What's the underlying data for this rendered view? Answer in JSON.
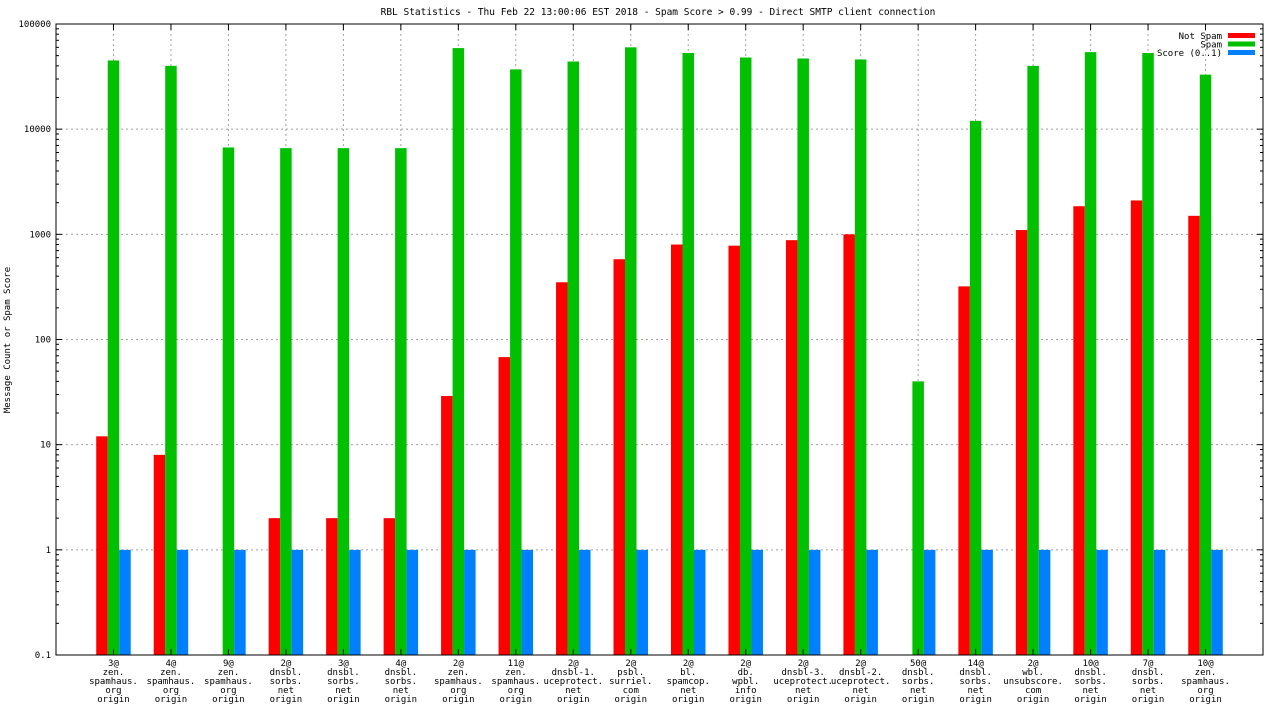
{
  "chart_data": {
    "type": "bar",
    "title": "RBL Statistics - Thu Feb 22 13:00:06 EST 2018 - Spam Score > 0.99 - Direct SMTP client connection",
    "ylabel": "Message Count or Spam Score",
    "xlabel": "",
    "yscale": "log",
    "ylim": [
      0.1,
      100000
    ],
    "grid": true,
    "legend_position": "top-right",
    "y_ticks": [
      "0.1",
      "1",
      "10",
      "100",
      "1000",
      "10000",
      "100000"
    ],
    "categories": [
      [
        "3@",
        "zen.",
        "spamhaus.",
        "org",
        "origin"
      ],
      [
        "4@",
        "zen.",
        "spamhaus.",
        "org",
        "origin"
      ],
      [
        "9@",
        "zen.",
        "spamhaus.",
        "org",
        "origin"
      ],
      [
        "2@",
        "dnsbl.",
        "sorbs.",
        "net",
        "origin"
      ],
      [
        "3@",
        "dnsbl.",
        "sorbs.",
        "net",
        "origin"
      ],
      [
        "4@",
        "dnsbl.",
        "sorbs.",
        "net",
        "origin"
      ],
      [
        "2@",
        "zen.",
        "spamhaus.",
        "org",
        "origin"
      ],
      [
        "11@",
        "zen.",
        "spamhaus.",
        "org",
        "origin"
      ],
      [
        "2@",
        "dnsbl-1.",
        "uceprotect.",
        "net",
        "origin"
      ],
      [
        "2@",
        "psbl.",
        "surriel.",
        "com",
        "origin"
      ],
      [
        "2@",
        "bl.",
        "spamcop.",
        "net",
        "origin"
      ],
      [
        "2@",
        "db.",
        "wpbl.",
        "info",
        "origin"
      ],
      [
        "2@",
        "dnsbl-3.",
        "uceprotect.",
        "net",
        "origin"
      ],
      [
        "2@",
        "dnsbl-2.",
        "uceprotect.",
        "net",
        "origin"
      ],
      [
        "50@",
        "dnsbl.",
        "sorbs.",
        "net",
        "origin"
      ],
      [
        "14@",
        "dnsbl.",
        "sorbs.",
        "net",
        "origin"
      ],
      [
        "2@",
        "wbl.",
        "unsubscore.",
        "com",
        "origin"
      ],
      [
        "10@",
        "dnsbl.",
        "sorbs.",
        "net",
        "origin"
      ],
      [
        "7@",
        "dnsbl.",
        "sorbs.",
        "net",
        "origin"
      ],
      [
        "10@",
        "zen.",
        "spamhaus.",
        "org",
        "origin"
      ]
    ],
    "series": [
      {
        "name": "Not Spam",
        "color": "#ff0000",
        "values": [
          12,
          8,
          null,
          2,
          2,
          2,
          29,
          68,
          350,
          580,
          800,
          780,
          880,
          1000,
          null,
          320,
          1100,
          1850,
          2100,
          1500
        ]
      },
      {
        "name": "Spam",
        "color": "#00c000",
        "values": [
          45000,
          40000,
          6700,
          6600,
          6600,
          6600,
          59000,
          37000,
          44000,
          60000,
          53000,
          48000,
          47000,
          46000,
          40,
          12000,
          40000,
          54000,
          53000,
          33000
        ]
      },
      {
        "name": "Score (0..1)",
        "color": "#0080ff",
        "values": [
          1,
          1,
          1,
          1,
          1,
          1,
          1,
          1,
          1,
          1,
          1,
          1,
          1,
          1,
          1,
          1,
          1,
          1,
          1,
          1
        ]
      }
    ]
  }
}
